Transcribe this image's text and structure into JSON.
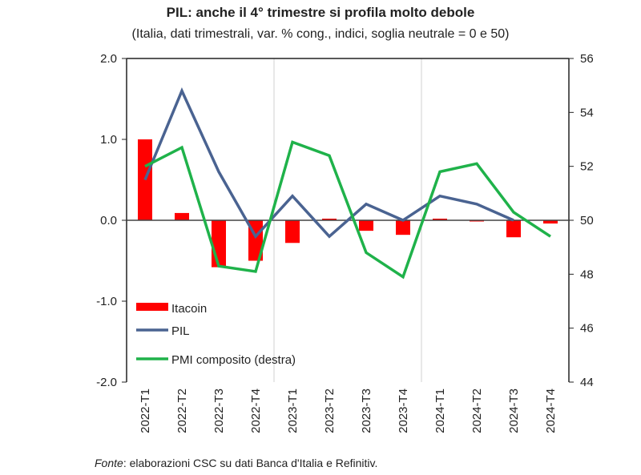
{
  "chart_data": {
    "type": "bar+line",
    "title": "PIL: anche il 4° trimestre si profila molto debole",
    "subtitle": "(Italia, dati trimestrali, var. % cong., indici, soglia neutrale = 0 e 50)",
    "categories": [
      "2022-T1",
      "2022-T2",
      "2022-T3",
      "2022-T4",
      "2023-T1",
      "2023-T2",
      "2023-T3",
      "2023-T4",
      "2024-T1",
      "2024-T2",
      "2024-T3",
      "2024-T4"
    ],
    "ylim_left": [
      -2.0,
      2.0
    ],
    "ylim_right": [
      44,
      56
    ],
    "left_ticks": [
      "-2.0",
      "-1.0",
      "0.0",
      "1.0",
      "2.0"
    ],
    "right_ticks": [
      "44",
      "46",
      "48",
      "50",
      "52",
      "54",
      "56"
    ],
    "series": [
      {
        "name": "Itacoin",
        "type": "bar",
        "axis": "left",
        "color": "#ff0000",
        "values": [
          1.0,
          0.09,
          -0.58,
          -0.5,
          -0.28,
          0.02,
          -0.13,
          -0.18,
          0.02,
          -0.01,
          -0.21,
          -0.04
        ]
      },
      {
        "name": "PIL",
        "type": "line",
        "axis": "left",
        "color": "#4a6391",
        "values": [
          0.5,
          1.6,
          0.6,
          -0.2,
          0.3,
          -0.2,
          0.2,
          0.0,
          0.3,
          0.2,
          0.0,
          null
        ]
      },
      {
        "name": "PMI composito (destra)",
        "type": "line",
        "axis": "right",
        "color": "#1fb24a",
        "values": [
          52.0,
          52.7,
          48.3,
          48.1,
          52.9,
          52.4,
          48.8,
          47.9,
          51.8,
          52.1,
          50.3,
          49.4
        ]
      }
    ],
    "legend_position": "bottom-left",
    "grid": "vertical separators between years"
  },
  "source": {
    "label": "Fonte",
    "text": ": elaborazioni CSC su dati Banca d'Italia e Refinitiv."
  }
}
